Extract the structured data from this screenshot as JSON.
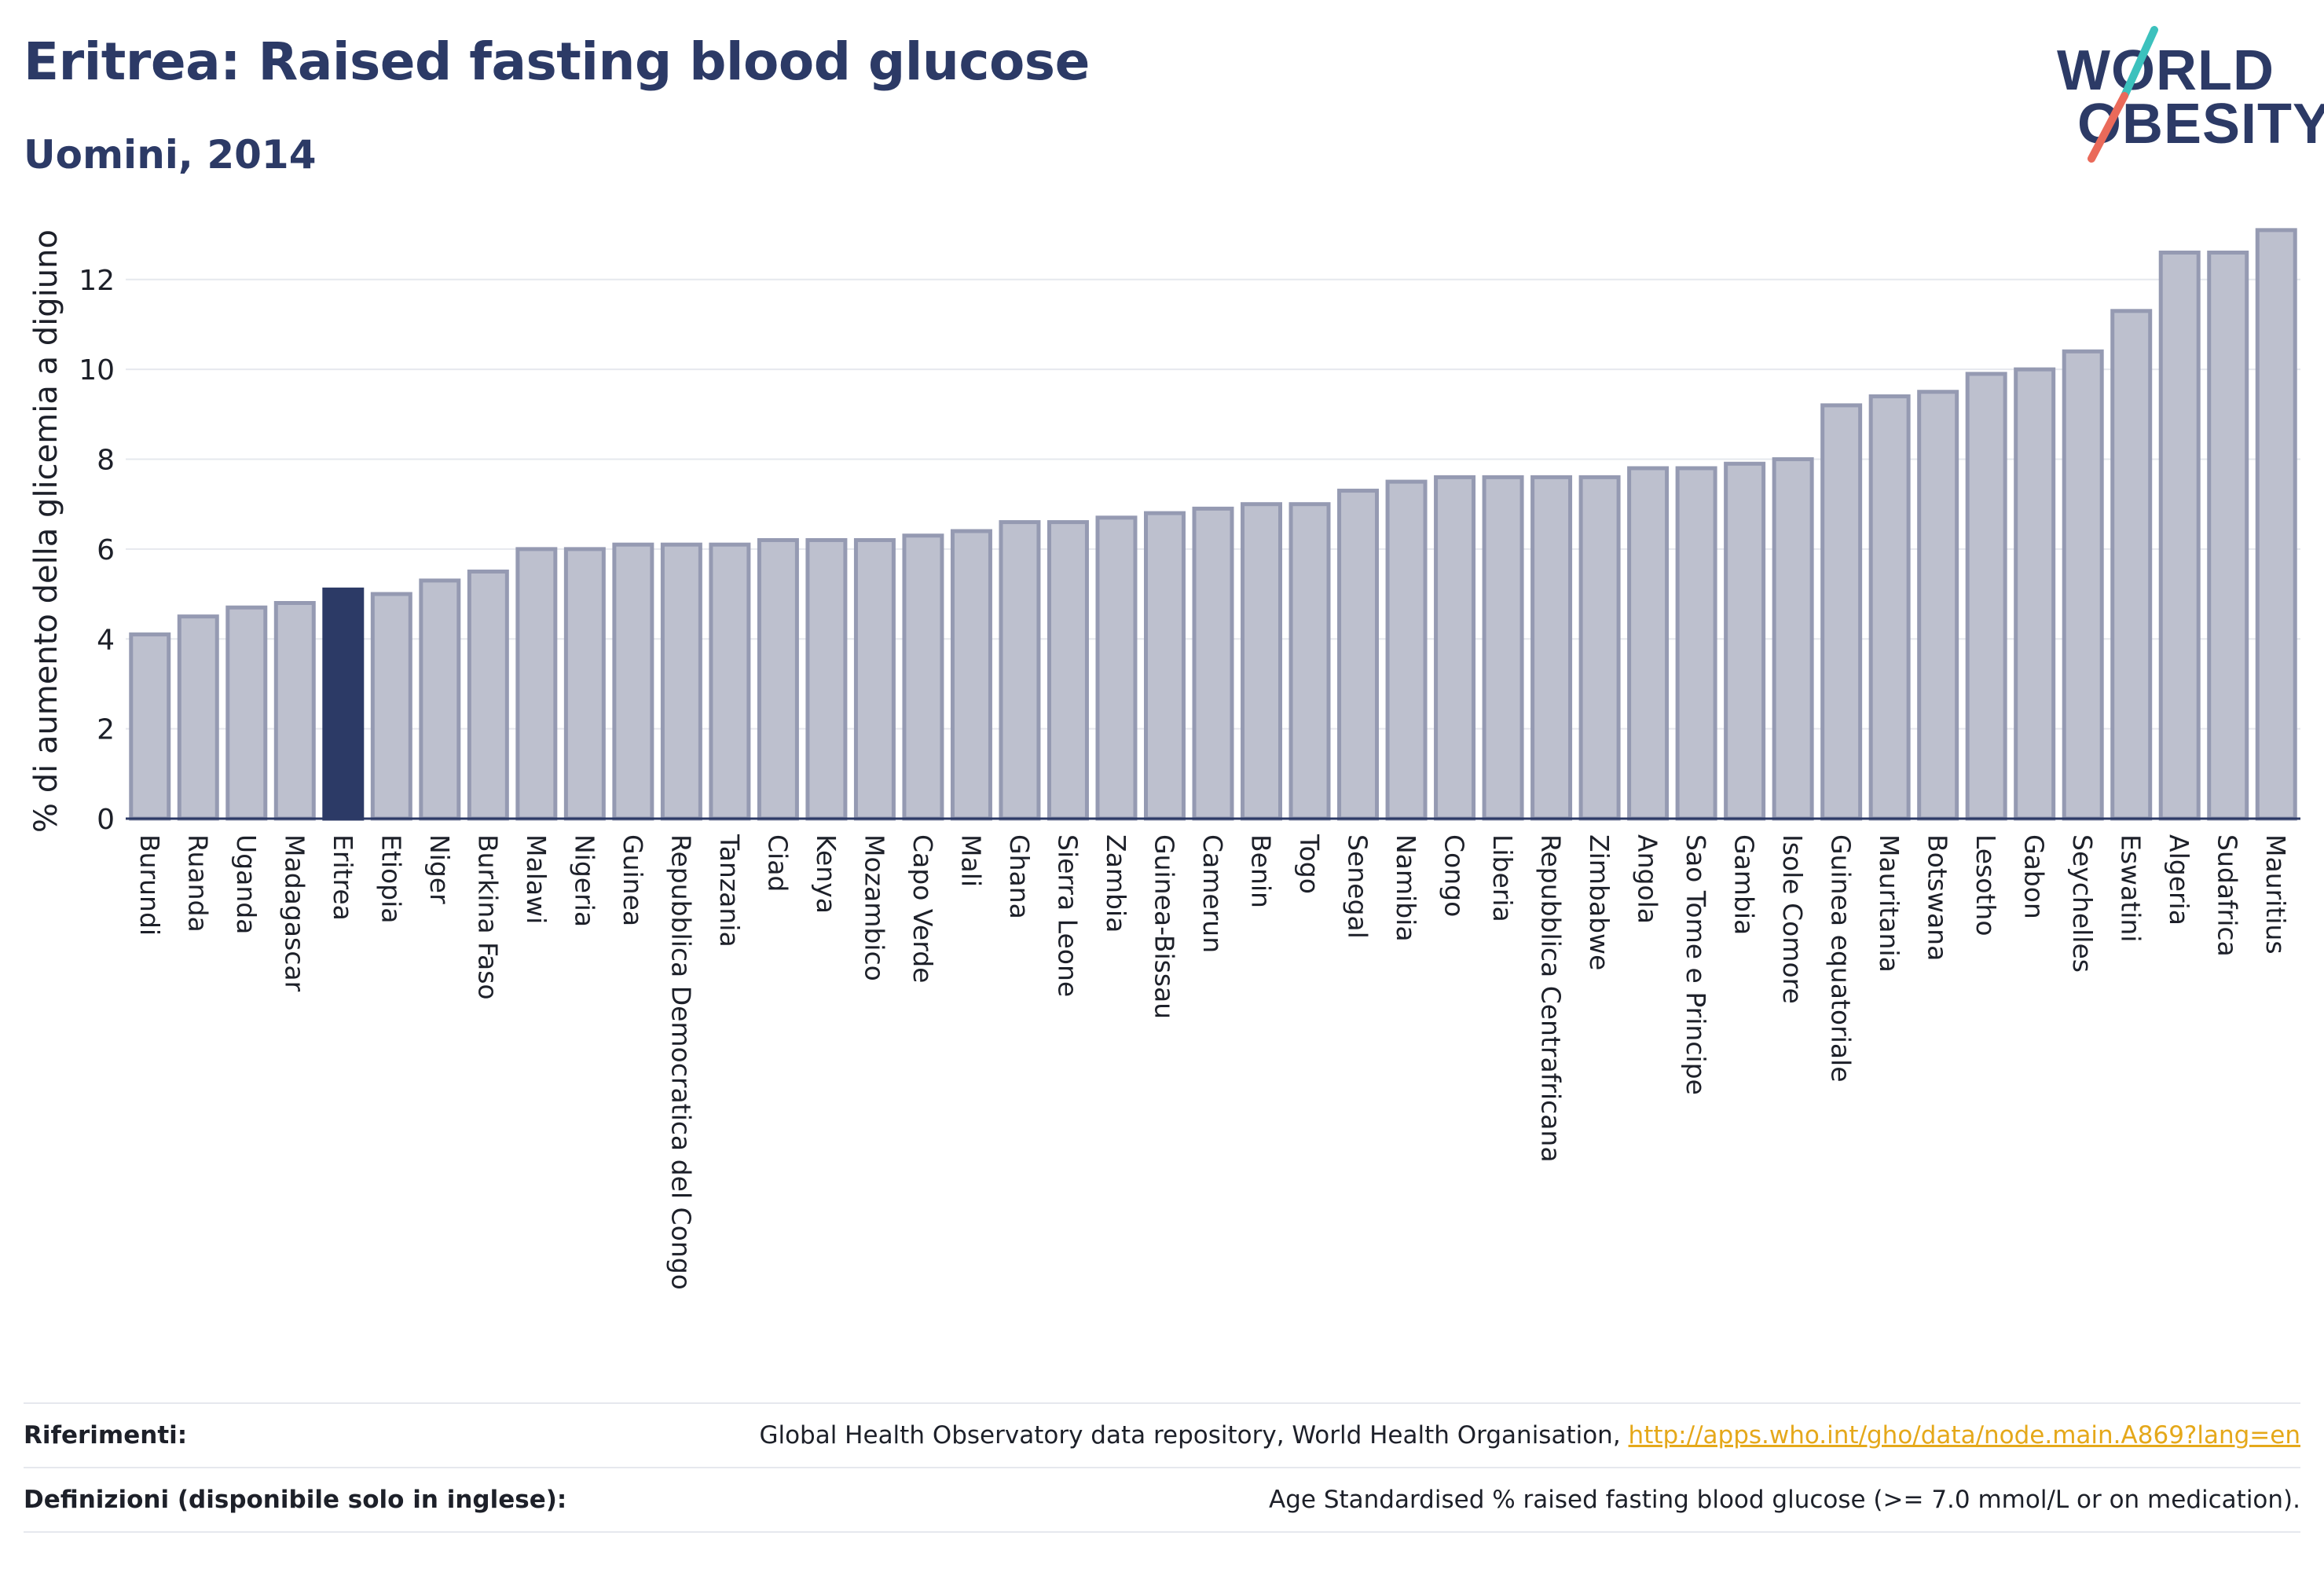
{
  "header": {
    "title": "Eritrea: Raised fasting blood glucose",
    "subtitle": "Uomini, 2014"
  },
  "logo": {
    "line1": "WORLD",
    "line2": "OBESITY"
  },
  "colors": {
    "highlight": "#2c3a66",
    "bar_fill": "#bdc0ce",
    "bar_stroke": "#959ab2",
    "grid": "#e6e8ee",
    "accent_teal": "#3cc1bd",
    "accent_coral": "#ea6a5a"
  },
  "chart_data": {
    "type": "bar",
    "ylabel": "% di aumento della glicemia a digiuno",
    "ylim": [
      0,
      13.5
    ],
    "yticks": [
      0,
      2,
      4,
      6,
      8,
      10,
      12
    ],
    "grid": true,
    "highlight": "Eritrea",
    "categories": [
      "Burundi",
      "Ruanda",
      "Uganda",
      "Madagascar",
      "Eritrea",
      "Etiopia",
      "Niger",
      "Burkina Faso",
      "Malawi",
      "Nigeria",
      "Guinea",
      "Repubblica Democratica del Congo",
      "Tanzania",
      "Ciad",
      "Kenya",
      "Mozambico",
      "Capo Verde",
      "Mali",
      "Ghana",
      "Sierra Leone",
      "Zambia",
      "Guinea-Bissau",
      "Camerun",
      "Benin",
      "Togo",
      "Senegal",
      "Namibia",
      "Congo",
      "Liberia",
      "Repubblica Centrafricana",
      "Zimbabwe",
      "Angola",
      "Sao Tome e Principe",
      "Gambia",
      "Isole Comore",
      "Guinea equatoriale",
      "Mauritania",
      "Botswana",
      "Lesotho",
      "Gabon",
      "Seychelles",
      "Eswatini",
      "Algeria",
      "Sudafrica",
      "Mauritius"
    ],
    "values": [
      4.1,
      4.5,
      4.7,
      4.8,
      5.1,
      5.0,
      5.3,
      5.5,
      6.0,
      6.0,
      6.1,
      6.1,
      6.1,
      6.2,
      6.2,
      6.2,
      6.3,
      6.4,
      6.6,
      6.6,
      6.7,
      6.8,
      6.9,
      7.0,
      7.0,
      7.3,
      7.5,
      7.6,
      7.6,
      7.6,
      7.6,
      7.8,
      7.8,
      7.9,
      8.0,
      9.2,
      9.4,
      9.5,
      9.9,
      10.0,
      10.4,
      11.3,
      12.6,
      12.6,
      13.1
    ]
  },
  "footer": {
    "refs_label": "Riferimenti:",
    "refs_text": "Global Health Observatory data repository, World Health Organisation,",
    "refs_link": "http://apps.who.int/gho/data/node.main.A869?lang=en",
    "defs_label": "Definizioni (disponibile solo in inglese):",
    "defs_text": "Age Standardised % raised fasting blood glucose (>= 7.0 mmol/L or on medication)."
  }
}
